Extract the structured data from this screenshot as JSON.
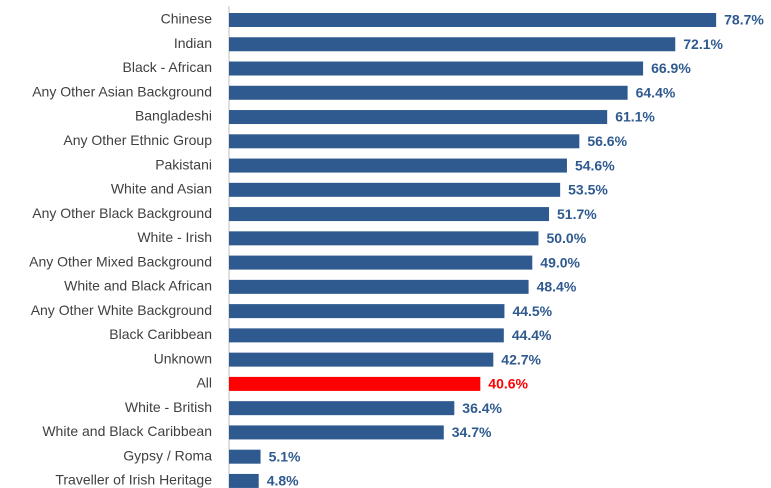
{
  "chart_data": {
    "type": "barh",
    "categories": [
      "Chinese",
      "Indian",
      "Black - African",
      "Any Other Asian Background",
      "Bangladeshi",
      "Any Other Ethnic Group",
      "Pakistani",
      "White and Asian",
      "Any Other Black Background",
      "White - Irish",
      "Any Other Mixed Background",
      "White and Black African",
      "Any Other White Background",
      "Black Caribbean",
      "Unknown",
      "All",
      "White - British",
      "White and Black Caribbean",
      "Gypsy / Roma",
      "Traveller of Irish Heritage"
    ],
    "values": [
      78.7,
      72.1,
      66.9,
      64.4,
      61.1,
      56.6,
      54.6,
      53.5,
      51.7,
      50.0,
      49.0,
      48.4,
      44.5,
      44.4,
      42.7,
      40.6,
      36.4,
      34.7,
      5.1,
      4.8
    ],
    "value_labels": [
      "78.7%",
      "72.1%",
      "66.9%",
      "64.4%",
      "61.1%",
      "56.6%",
      "54.6%",
      "53.5%",
      "51.7%",
      "50.0%",
      "49.0%",
      "48.4%",
      "44.5%",
      "44.4%",
      "42.7%",
      "40.6%",
      "36.4%",
      "34.7%",
      "5.1%",
      "4.8%"
    ],
    "colors": [
      "#2f5a8f",
      "#2f5a8f",
      "#2f5a8f",
      "#2f5a8f",
      "#2f5a8f",
      "#2f5a8f",
      "#2f5a8f",
      "#2f5a8f",
      "#2f5a8f",
      "#2f5a8f",
      "#2f5a8f",
      "#2f5a8f",
      "#2f5a8f",
      "#2f5a8f",
      "#2f5a8f",
      "#ff0000",
      "#2f5a8f",
      "#2f5a8f",
      "#2f5a8f",
      "#2f5a8f"
    ],
    "xlim": [
      0,
      87
    ]
  }
}
